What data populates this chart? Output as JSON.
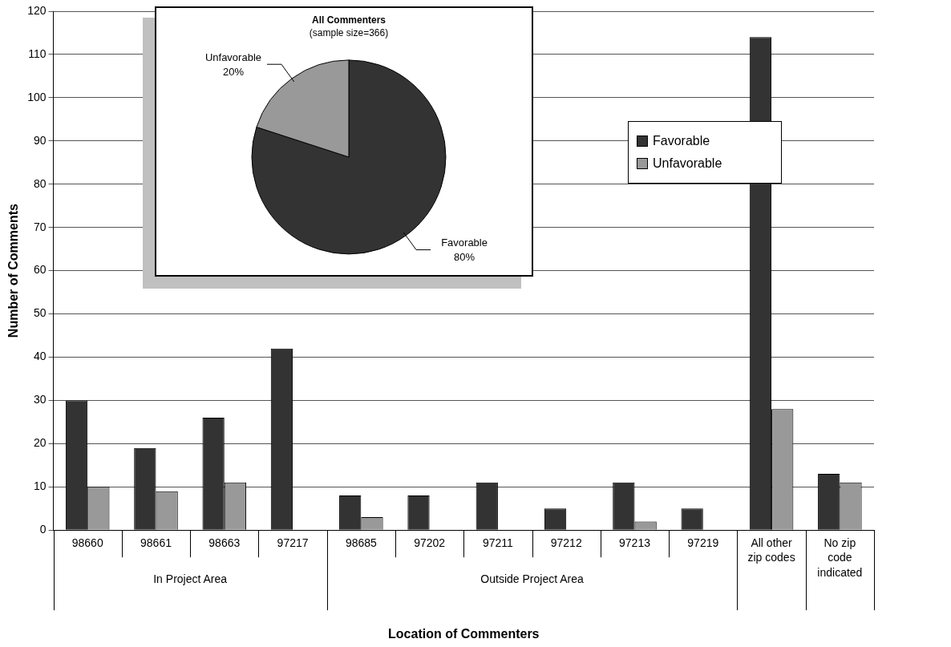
{
  "chart_data": [
    {
      "type": "bar",
      "xlabel": "Location of Commenters",
      "ylabel": "Number of Comments",
      "categories": [
        "98660",
        "98661",
        "98663",
        "97217",
        "98685",
        "97202",
        "97211",
        "97212",
        "97213",
        "97219",
        "All other zip codes",
        "No zip code indicated"
      ],
      "series": [
        {
          "name": "Favorable",
          "color": "#333333",
          "values": [
            30,
            19,
            26,
            42,
            8,
            8,
            11,
            5,
            11,
            5,
            114,
            13
          ]
        },
        {
          "name": "Unfavorable",
          "color": "#999999",
          "values": [
            10,
            9,
            11,
            0,
            3,
            0,
            0,
            0,
            2,
            0,
            28,
            11
          ]
        }
      ],
      "annotations": [
        "In Project Area",
        "Outside Project Area"
      ],
      "ylim": [
        0,
        120
      ],
      "yticks": [
        0,
        10,
        20,
        30,
        40,
        50,
        60,
        70,
        80,
        90,
        100,
        110,
        120
      ],
      "grid": "y",
      "legend": "top right"
    },
    {
      "type": "pie",
      "title": "All Commenters",
      "subtitle": "(sample size=366)",
      "categories": [
        "Favorable",
        "Unfavorable"
      ],
      "values": [
        80,
        20
      ],
      "colors": [
        "#333333",
        "#999999"
      ],
      "value_labels": [
        "80%",
        "20%"
      ]
    }
  ]
}
